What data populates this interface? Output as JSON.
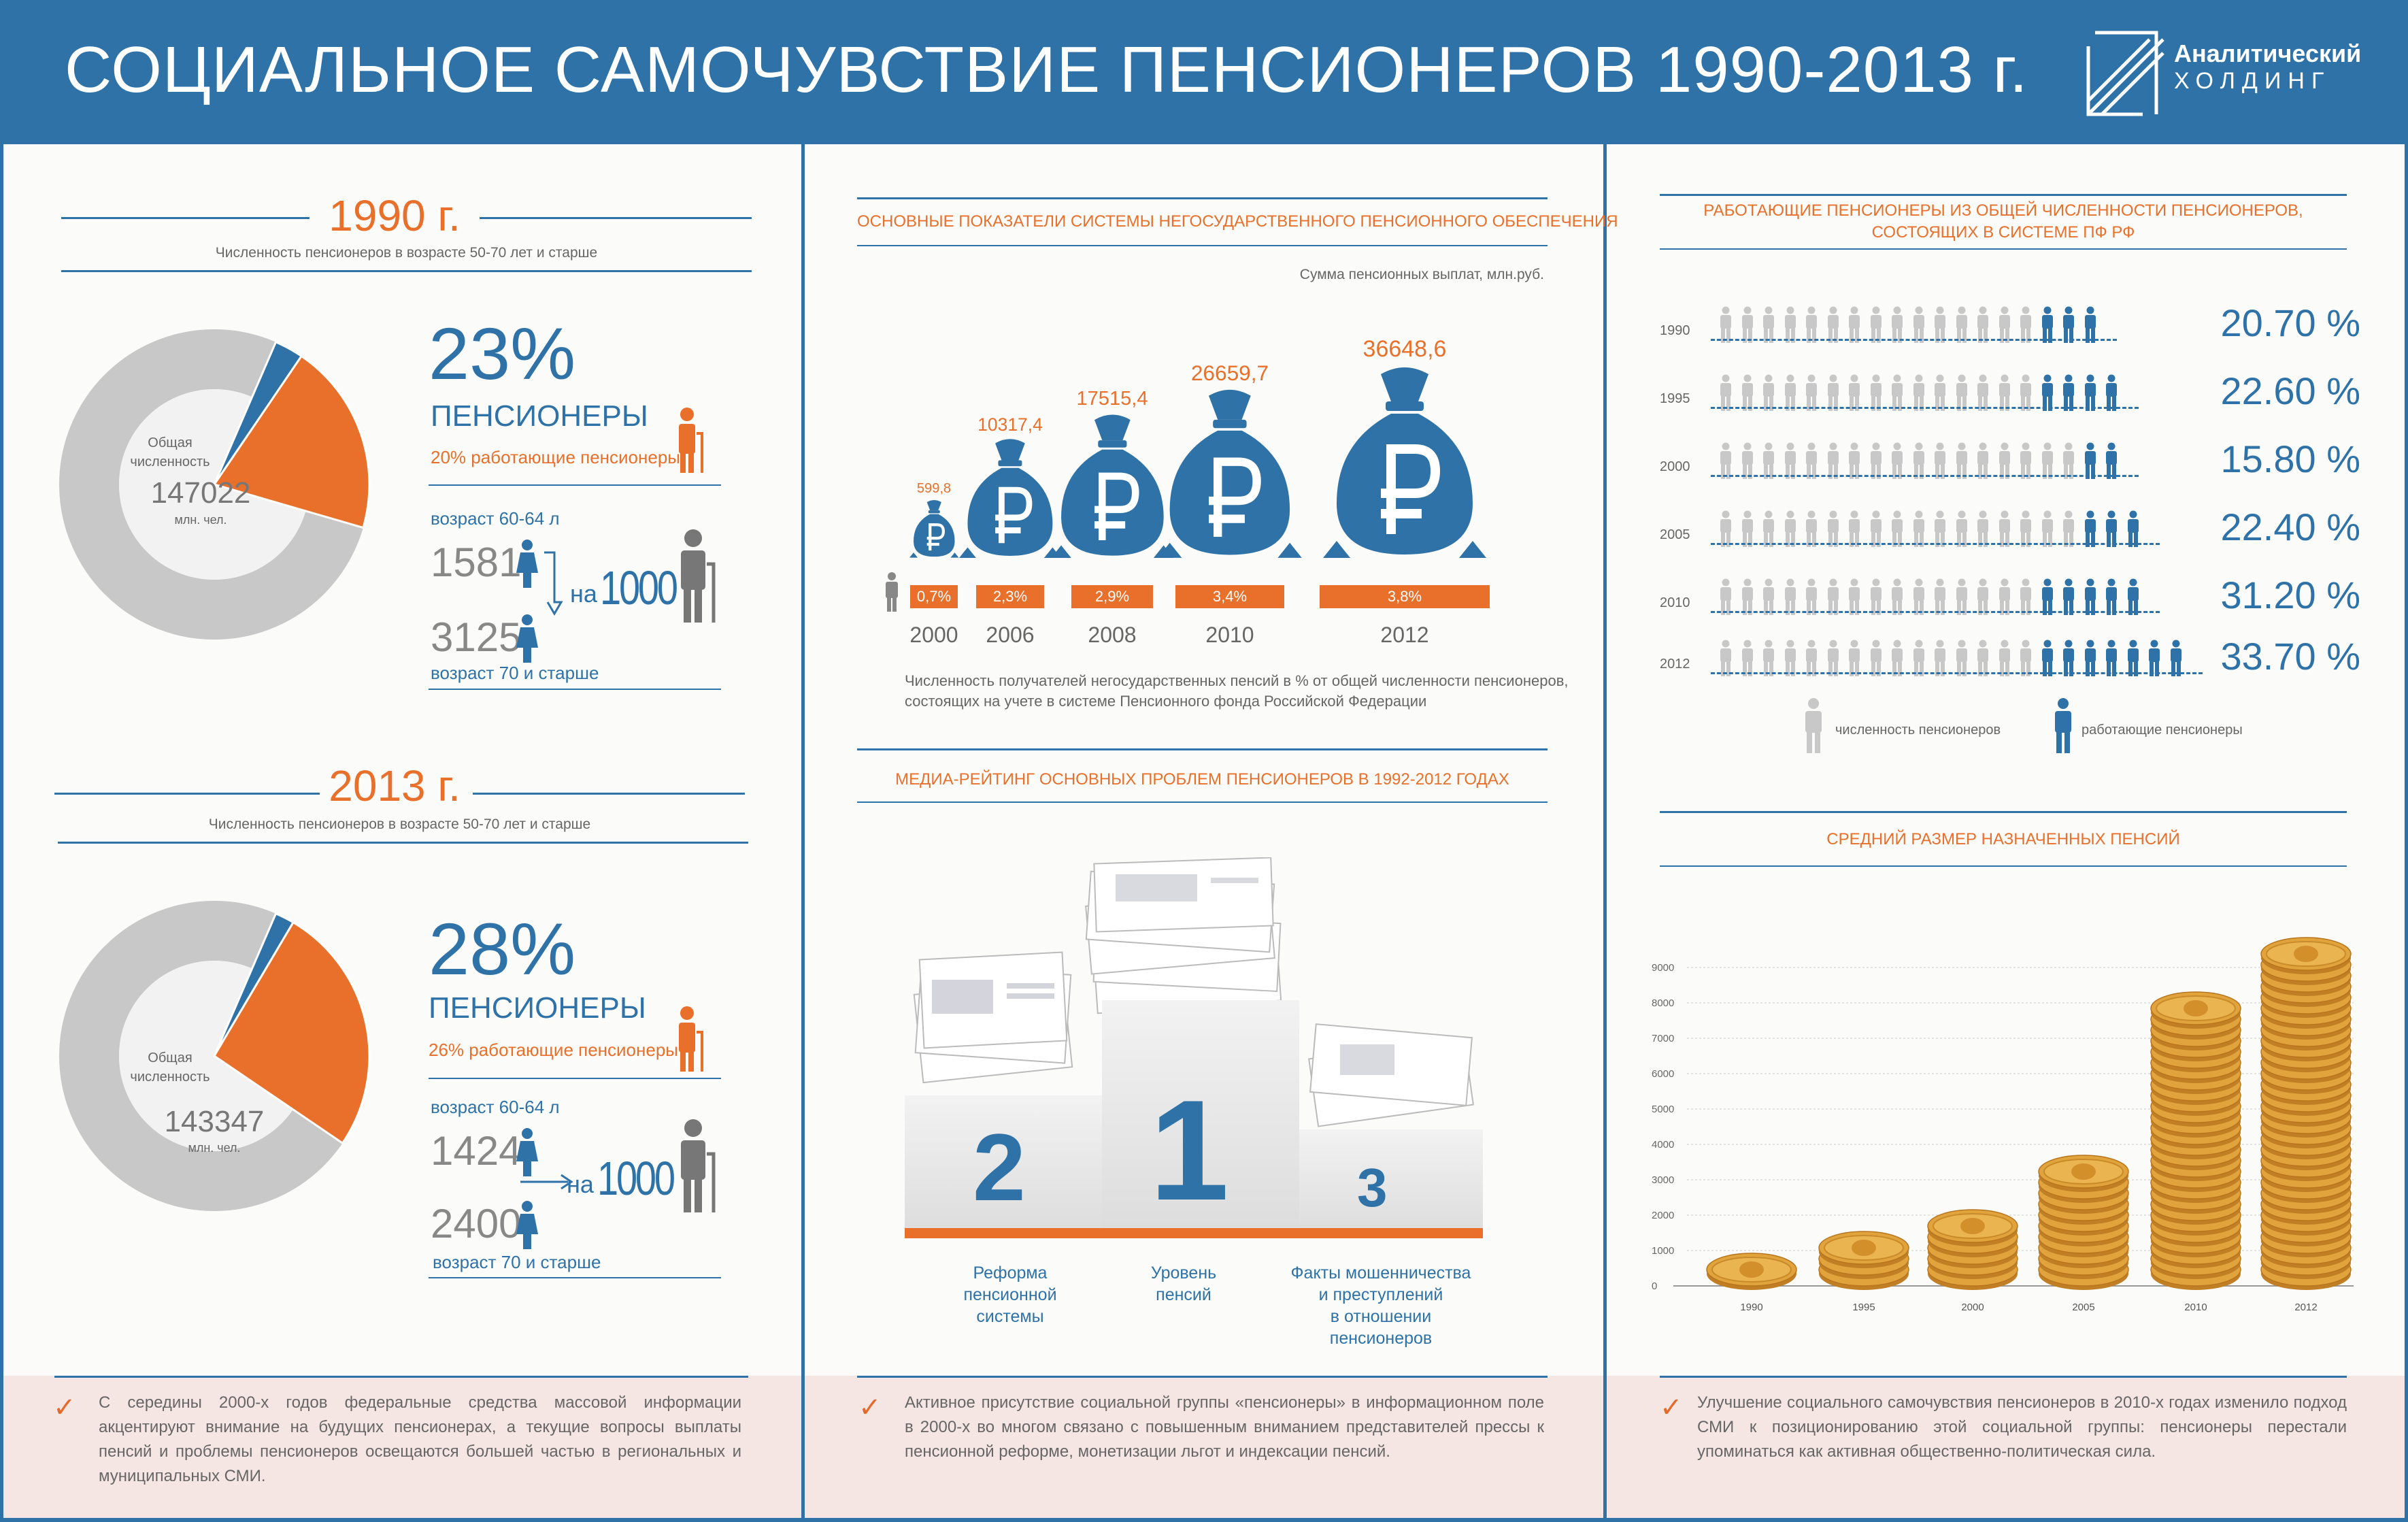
{
  "header": {
    "title": "СОЦИАЛЬНОЕ САМОЧУВСТВИЕ ПЕНСИОНЕРОВ 1990-2013 г.",
    "logo_line1": "Аналитический",
    "logo_line2": "ХОЛДИНГ"
  },
  "left": {
    "blocks": [
      {
        "year": "1990 г.",
        "subtitle": "Численность пенсионеров в возрасте 50-70 лет и старше",
        "donut_label1": "Общая",
        "donut_label2": "численность",
        "donut_value": "147022",
        "donut_unit": "млн. чел.",
        "percent": "23%",
        "percent_label": "ПЕНСИОНЕРЫ",
        "working": "20% работающие пенсионеры",
        "age1_label": "возраст 60-64 л",
        "age1_value": "1581",
        "per": "на",
        "per_value": "1000",
        "age2_value": "3125",
        "age2_label": "возраст 70 и старше",
        "pensioner_share": 0.23,
        "working_share": 0.2
      },
      {
        "year": "2013 г.",
        "subtitle": "Численность пенсионеров в возрасте 50-70 лет и старше",
        "donut_label1": "Общая",
        "donut_label2": "численность",
        "donut_value": "143347",
        "donut_unit": "млн. чел.",
        "percent": "28%",
        "percent_label": "ПЕНСИОНЕРЫ",
        "working": "26% работающие пенсионеры",
        "age1_label": "возраст 60-64 л",
        "age1_value": "1424",
        "per": "на",
        "per_value": "1000",
        "age2_value": "2400",
        "age2_label": "возраст 70 и старше",
        "pensioner_share": 0.28,
        "working_share": 0.26
      }
    ],
    "note": "С середины 2000-х годов федеральные средства массовой информации акцентируют внимание на будущих пенсионерах, а текущие вопросы выплаты пенсий и проблемы пенсионеров освещаются большей частью в региональных и муниципальных СМИ."
  },
  "middle": {
    "npf_title": "ОСНОВНЫЕ ПОКАЗАТЕЛИ СИСТЕМЫ НЕГОСУДАРСТВЕННОГО ПЕНСИОННОГО ОБЕСПЕЧЕНИЯ",
    "npf_subtitle": "Сумма пенсионных выплат, млн.руб.",
    "bags": [
      {
        "year": "2000",
        "amount": "599,8",
        "share": "0,7%",
        "value": 599.8
      },
      {
        "year": "2006",
        "amount": "10317,4",
        "share": "2,3%",
        "value": 10317.4
      },
      {
        "year": "2008",
        "amount": "17515,4",
        "share": "2,9%",
        "value": 17515.4
      },
      {
        "year": "2010",
        "amount": "26659,7",
        "share": "3,4%",
        "value": 26659.7
      },
      {
        "year": "2012",
        "amount": "36648,6",
        "share": "3,8%",
        "value": 36648.6
      }
    ],
    "npf_note1": "Численность получателей негосударственных пенсий в % от общей численности пенсионеров,",
    "npf_note2": "состоящих на учете в системе Пенсионного фонда Российской Федерации",
    "media_title": "МЕДИА-РЕЙТИНГ ОСНОВНЫХ ПРОБЛЕМ ПЕНСИОНЕРОВ В 1992-2012 ГОДАХ",
    "podium": [
      {
        "place": "2",
        "label": [
          "Реформа",
          "пенсионной",
          "системы"
        ]
      },
      {
        "place": "1",
        "label": [
          "Уровень",
          "пенсий"
        ]
      },
      {
        "place": "3",
        "label": [
          "Факты мошенничества",
          "и преступлений",
          "в отношении",
          "пенсионеров"
        ]
      }
    ],
    "note": "Активное присутствие социальной группы «пенсионеры» в информационном поле в 2000-х во многом связано с повышенным вниманием представителей прессы к пенсионной реформе, монетизации льгот и индексации пенсий."
  },
  "right": {
    "working_title1": "РАБОТАЮЩИЕ ПЕНСИОНЕРЫ ИЗ ОБЩЕЙ ЧИСЛЕННОСТИ ПЕНСИОНЕРОВ,",
    "working_title2": "СОСТОЯЩИХ В СИСТЕМЕ ПФ РФ",
    "rows": [
      {
        "year": "1990",
        "percent": "20.70 %",
        "total": 18,
        "blue": 3
      },
      {
        "year": "1995",
        "percent": "22.60 %",
        "total": 19,
        "blue": 4
      },
      {
        "year": "2000",
        "percent": "15.80 %",
        "total": 19,
        "blue": 2
      },
      {
        "year": "2005",
        "percent": "22.40 %",
        "total": 20,
        "blue": 3
      },
      {
        "year": "2010",
        "percent": "31.20 %",
        "total": 20,
        "blue": 5
      },
      {
        "year": "2012",
        "percent": "33.70 %",
        "total": 22,
        "blue": 7
      }
    ],
    "legend_total": "численность пенсионеров",
    "legend_working": "работающие пенсионеры",
    "chart_title": "СРЕДНИЙ РАЗМЕР НАЗНАЧЕННЫХ ПЕНСИЙ",
    "colors": {
      "accent": "#2e72a8",
      "orange": "#e8702b",
      "grey": "#c8c8c8",
      "coin": "#e1a43c"
    },
    "note": "Улучшение социального самочувствия пенсионеров в 2010-х годах изменило подход СМИ к позиционированию этой социальной группы: пенсионеры перестали упоминаться как активная общественно-политическая сила."
  },
  "chart_data": {
    "type": "bar",
    "title": "СРЕДНИЙ РАЗМЕР НАЗНАЧЕННЫХ ПЕНСИЙ",
    "categories": [
      "1990",
      "1995",
      "2000",
      "2005",
      "2010",
      "2012"
    ],
    "values": [
      900,
      1300,
      2050,
      3500,
      8100,
      9550
    ],
    "yticks": [
      "0",
      "1000",
      "2000",
      "3000",
      "4000",
      "5000",
      "6000",
      "7000",
      "8000",
      "9000"
    ],
    "ylim": [
      0,
      10000
    ],
    "xlabel": "",
    "ylabel": "",
    "grid": true
  }
}
